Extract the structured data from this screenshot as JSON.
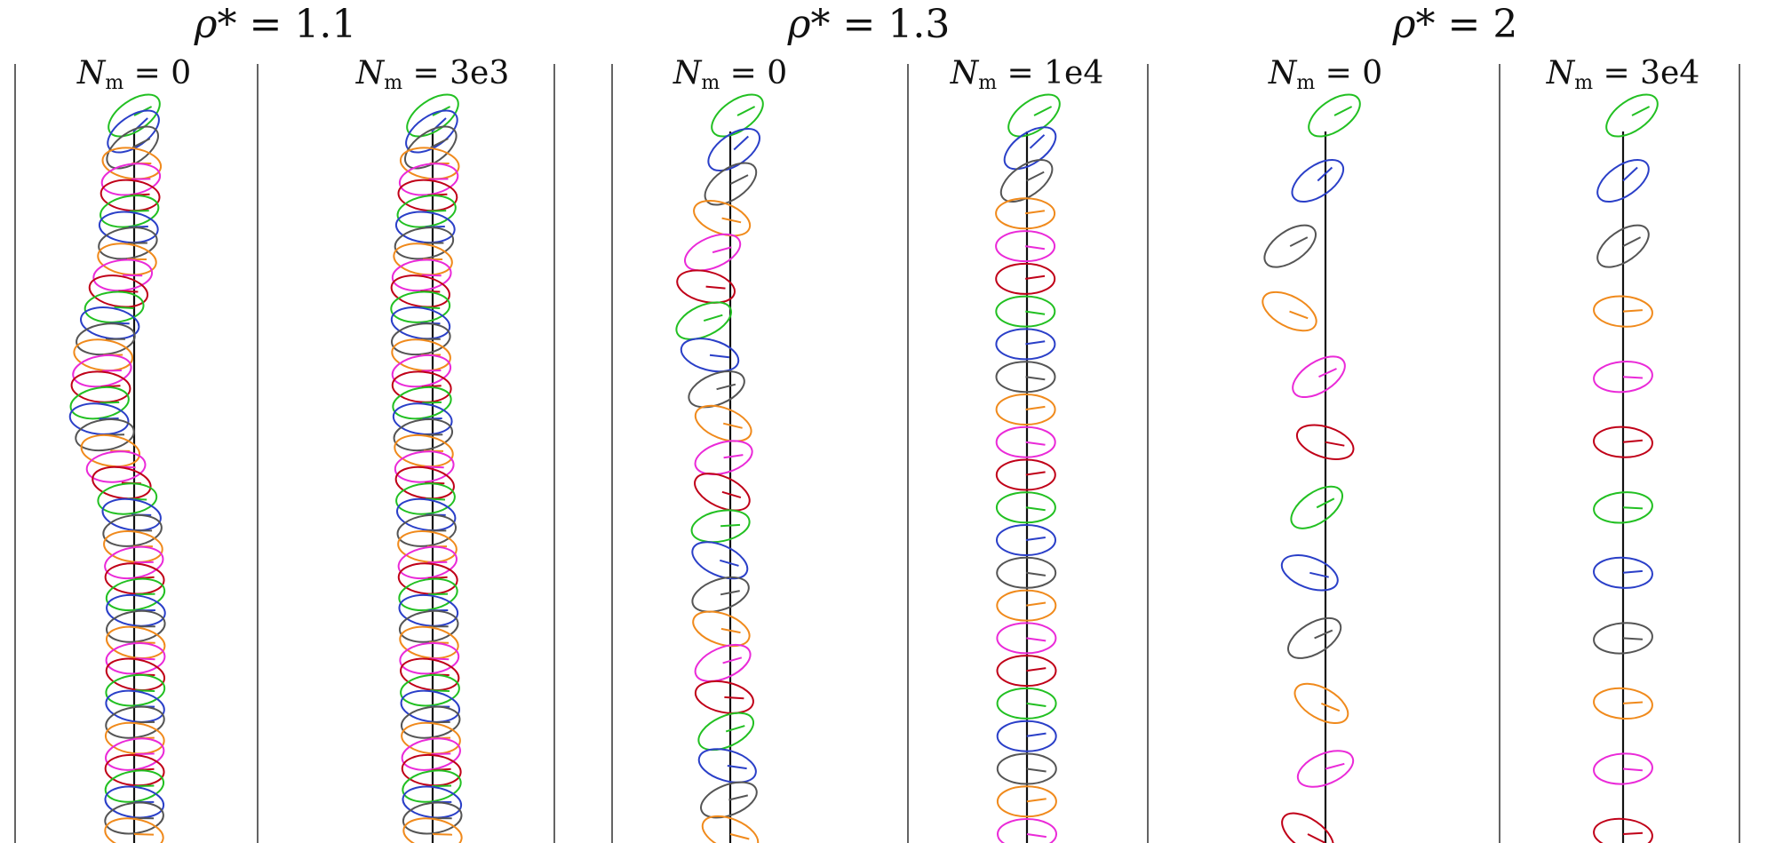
{
  "groups": [
    {
      "title_symbol": "ρ*",
      "title_value": "= 1.1",
      "panels": [
        {
          "label_symbol": "N",
          "label_subscript": "m",
          "label_value": "= 0",
          "n_ellipses": 46,
          "centerline": [
            [
              0,
              0
            ],
            [
              0.2,
              -8
            ],
            [
              0.32,
              -34
            ],
            [
              0.42,
              -40
            ],
            [
              0.55,
              -3
            ],
            [
              0.68,
              2
            ],
            [
              1,
              0
            ]
          ],
          "tilt_deg": 10
        },
        {
          "label_symbol": "N",
          "label_subscript": "m",
          "label_value": "= 3e3",
          "n_ellipses": 46,
          "centerline": [
            [
              0,
              0
            ],
            [
              0.12,
              -6
            ],
            [
              0.25,
              -14
            ],
            [
              0.4,
              -12
            ],
            [
              0.6,
              -6
            ],
            [
              1,
              0
            ]
          ],
          "tilt_deg": 10
        }
      ]
    },
    {
      "title_symbol": "ρ*",
      "title_value": "= 1.3",
      "panels": [
        {
          "label_symbol": "N",
          "label_subscript": "m",
          "label_value": "= 0",
          "n_ellipses": 22,
          "centerline": [
            [
              0,
              8
            ],
            [
              0.1,
              0
            ],
            [
              0.2,
              -22
            ],
            [
              0.27,
              -32
            ],
            [
              0.34,
              -22
            ],
            [
              0.44,
              -6
            ],
            [
              0.6,
              -12
            ],
            [
              0.72,
              -10
            ],
            [
              0.85,
              -5
            ],
            [
              1,
              0
            ]
          ],
          "tilt_deg": 25
        },
        {
          "label_symbol": "N",
          "label_subscript": "m",
          "label_value": "= 1e4",
          "n_ellipses": 23,
          "centerline": [
            [
              0,
              8
            ],
            [
              0.08,
              0
            ],
            [
              0.14,
              -2
            ],
            [
              1,
              0
            ]
          ],
          "tilt_deg": 0
        }
      ]
    },
    {
      "title_symbol": "ρ*",
      "title_value": "= 2",
      "panels": [
        {
          "label_symbol": "N",
          "label_subscript": "m",
          "label_value": "= 0",
          "n_ellipses": 12,
          "centerline": [
            [
              0,
              10
            ],
            [
              0.07,
              0
            ],
            [
              0.13,
              -25
            ],
            [
              0.2,
              -45
            ],
            [
              0.28,
              -40
            ],
            [
              0.37,
              -5
            ],
            [
              0.45,
              0
            ],
            [
              0.52,
              -5
            ],
            [
              0.6,
              -20
            ],
            [
              0.68,
              -15
            ],
            [
              0.77,
              -10
            ],
            [
              0.86,
              0
            ],
            [
              0.93,
              0
            ],
            [
              1,
              -20
            ]
          ],
          "tilt_deg": 35
        },
        {
          "label_symbol": "N",
          "label_subscript": "m",
          "label_value": "= 3e4",
          "n_ellipses": 12,
          "centerline": [
            [
              0,
              10
            ],
            [
              0.08,
              0
            ],
            [
              0.2,
              0
            ],
            [
              1,
              0
            ]
          ],
          "tilt_deg": 5
        }
      ]
    }
  ],
  "palette": [
    "#22c022",
    "#2a3fc8",
    "#555555",
    "#f08a1c",
    "#ea2ad8",
    "#c00018"
  ],
  "line_color": "#111111"
}
